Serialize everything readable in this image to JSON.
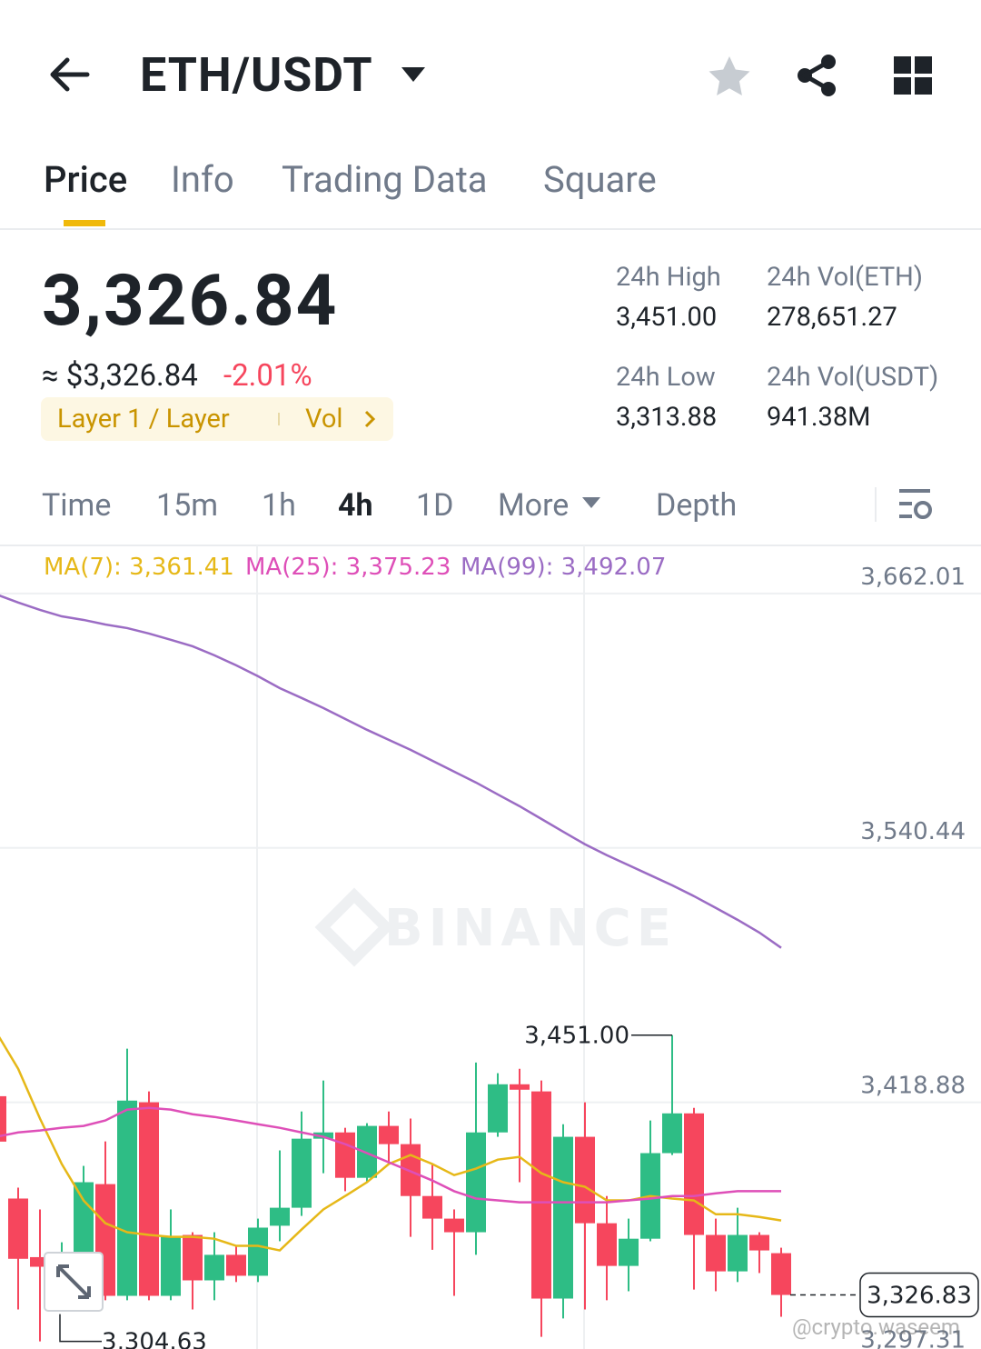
{
  "header": {
    "pair": "ETH/USDT"
  },
  "tabs": [
    "Price",
    "Info",
    "Trading Data",
    "Square"
  ],
  "ticker": {
    "price": "3,326.84",
    "usd": "≈ $3,326.84",
    "change": "-2.01%",
    "tags": [
      "Layer 1 / Layer",
      "Vol"
    ]
  },
  "stats": [
    {
      "label": "24h High",
      "value": "3,451.00"
    },
    {
      "label": "24h Vol(ETH)",
      "value": "278,651.27"
    },
    {
      "label": "24h Low",
      "value": "3,313.88"
    },
    {
      "label": "24h Vol(USDT)",
      "value": "941.38M"
    }
  ],
  "intervals": [
    "Time",
    "15m",
    "1h",
    "4h",
    "1D",
    "More",
    "Depth"
  ],
  "chart_data": {
    "type": "candlestick",
    "watermark": "BINANCE",
    "ylim": [
      3301,
      3685
    ],
    "yticks": [
      {
        "value": 3662.01,
        "label": "3,662.01"
      },
      {
        "value": 3540.44,
        "label": "3,540.44"
      },
      {
        "value": 3418.88,
        "label": "3,418.88"
      },
      {
        "value": 3297.31,
        "label": "3,297.31"
      }
    ],
    "up_color": "#2ebd85",
    "down_color": "#f6465d",
    "open": [
      3421.8,
      3372.9,
      3344.9,
      3340.3,
      3346.8,
      3379.8,
      3326.4,
      3418.9,
      3326.4,
      3355.5,
      3333.8,
      3346.0,
      3336.0,
      3359.9,
      3368.5,
      3401.5,
      3404.5,
      3382.8,
      3407.6,
      3398.9,
      3374.1,
      3363.3,
      3356.8,
      3404.5,
      3427.5,
      3424.1,
      3325.1,
      3402.4,
      3361.1,
      3340.7,
      3353.7,
      3394.6,
      3413.6,
      3355.5,
      3338.1,
      3355.5,
      3346.8
    ],
    "high": [
      3428.4,
      3378.1,
      3367.7,
      3352.0,
      3388.5,
      3400.2,
      3444.5,
      3424.1,
      3367.7,
      3356.8,
      3356.8,
      3350.3,
      3363.3,
      3395.9,
      3414.5,
      3429.3,
      3406.7,
      3408.9,
      3414.5,
      3411.1,
      3389.4,
      3367.7,
      3437.9,
      3432.8,
      3434.9,
      3429.3,
      3408.4,
      3418.9,
      3374.1,
      3363.3,
      3410.2,
      3451.0,
      3416.2,
      3363.3,
      3368.5,
      3356.8,
      3349.4
    ],
    "low": [
      3374.0,
      3319.9,
      3304.63,
      3332.0,
      3337.3,
      3324.3,
      3324.3,
      3324.3,
      3324.3,
      3319.9,
      3324.3,
      3333.0,
      3333.0,
      3352.5,
      3364.6,
      3385.0,
      3376.4,
      3380.7,
      3389.4,
      3354.6,
      3348.4,
      3326.4,
      3346.0,
      3402.4,
      3380.7,
      3306.8,
      3315.6,
      3319.9,
      3324.3,
      3328.6,
      3352.5,
      3393.7,
      3329.4,
      3328.6,
      3333.0,
      3337.3,
      3316.4
    ],
    "close": [
      3400.1,
      3344.1,
      3340.3,
      3346.8,
      3380.7,
      3326.4,
      3419.7,
      3326.4,
      3354.6,
      3333.8,
      3346.0,
      3336.0,
      3359.0,
      3368.5,
      3401.5,
      3404.5,
      3382.8,
      3407.6,
      3398.9,
      3374.1,
      3363.3,
      3356.8,
      3404.5,
      3427.5,
      3424.9,
      3325.1,
      3402.4,
      3361.1,
      3340.7,
      3353.7,
      3394.6,
      3413.6,
      3355.5,
      3338.1,
      3355.5,
      3348.1,
      3326.83
    ],
    "series": [
      {
        "name": "MA(7): 3,361.41",
        "color": "#e6b818",
        "values": [
          3452.3,
          3434.9,
          3411.1,
          3389.4,
          3372.0,
          3361.1,
          3356.8,
          3355.5,
          3354.6,
          3354.6,
          3353.7,
          3350.3,
          3350.3,
          3348.1,
          3358.1,
          3367.7,
          3374.1,
          3380.7,
          3389.4,
          3393.7,
          3389.4,
          3384.1,
          3387.2,
          3391.5,
          3392.8,
          3385.0,
          3380.7,
          3378.5,
          3372.0,
          3372.0,
          3374.1,
          3372.9,
          3372.0,
          3365.4,
          3365.4,
          3364.1,
          3362.4
        ]
      },
      {
        "name": "MA(25): 3,375.23",
        "color": "#de4fb8",
        "values": [
          3402.4,
          3404.5,
          3405.4,
          3406.7,
          3407.6,
          3410.2,
          3415.4,
          3416.2,
          3415.4,
          3413.2,
          3411.9,
          3410.2,
          3408.4,
          3406.7,
          3404.5,
          3402.4,
          3398.9,
          3394.6,
          3390.2,
          3385.9,
          3381.5,
          3376.4,
          3372.9,
          3372.0,
          3371.1,
          3371.1,
          3371.1,
          3371.1,
          3371.1,
          3372.0,
          3372.9,
          3374.1,
          3374.1,
          3375.4,
          3376.4,
          3376.4,
          3376.4
        ]
      },
      {
        "name": "MA(99): 3,492.07",
        "color": "#9b6cc4",
        "values": [
          3661.6,
          3657.7,
          3654.2,
          3651.1,
          3649.4,
          3647.2,
          3645.5,
          3642.9,
          3639.9,
          3636.8,
          3632.5,
          3627.7,
          3622.5,
          3616.8,
          3612.1,
          3607.3,
          3602.1,
          3596.9,
          3592.1,
          3587.3,
          3582.1,
          3576.9,
          3571.7,
          3566.0,
          3560.4,
          3554.3,
          3548.2,
          3542.2,
          3537.0,
          3532.2,
          3527.4,
          3522.6,
          3517.4,
          3511.8,
          3506.1,
          3500.0,
          3492.7
        ]
      }
    ],
    "annotations": [
      {
        "value": 3451.0,
        "label": "3,451.00"
      },
      {
        "value": 3304.63,
        "label": "3,304.63"
      }
    ],
    "last_price": {
      "value": 3326.83,
      "label": "3,326.83"
    }
  },
  "credit": "@crypto.waseem"
}
